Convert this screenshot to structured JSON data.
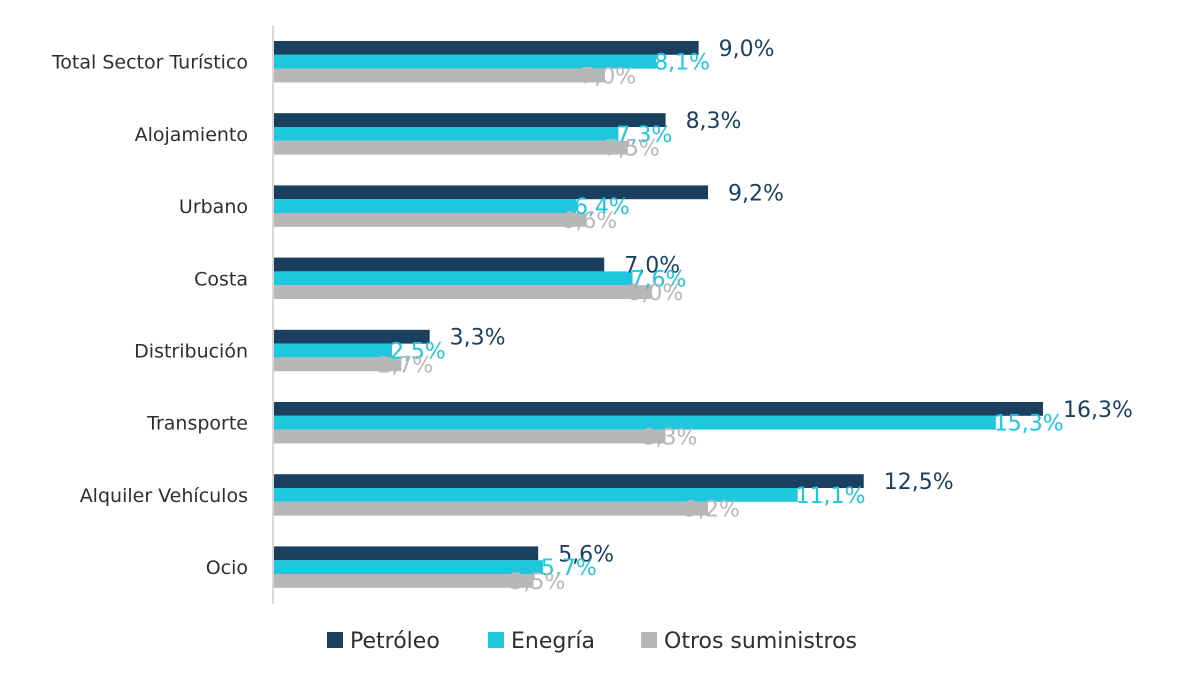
{
  "chart_data": {
    "type": "bar",
    "orientation": "horizontal",
    "categories": [
      "Total Sector Turístico",
      "Alojamiento",
      "Urbano",
      "Costa",
      "Distribución",
      "Transporte",
      "Alquiler Vehículos",
      "Ocio"
    ],
    "series": [
      {
        "name": "Petróleo",
        "color": "#1b3f5e",
        "values": [
          9.0,
          8.3,
          9.2,
          7.0,
          3.3,
          16.3,
          12.5,
          5.6
        ],
        "labels": [
          "9,0%",
          "8,3%",
          "9,2%",
          "7,0%",
          "3,3%",
          "16,3%",
          "12,5%",
          "5,6%"
        ]
      },
      {
        "name": "Enegría",
        "color": "#1ec6de",
        "values": [
          8.1,
          7.3,
          6.4,
          7.6,
          2.5,
          15.3,
          11.1,
          5.7
        ],
        "labels": [
          "8,1%",
          "7,3%",
          "6,4%",
          "7,6%",
          "2,5%",
          "15,3%",
          "11,1%",
          "5,7%"
        ]
      },
      {
        "name": "Otros suministros",
        "color": "#b7b7b7",
        "values": [
          7.0,
          7.5,
          6.6,
          8.0,
          2.7,
          8.3,
          9.2,
          5.5
        ],
        "labels": [
          "7,0%",
          "7,5%",
          "6,6%",
          "8,0%",
          "2,7%",
          "8,3%",
          "9,2%",
          "5,5%"
        ]
      }
    ],
    "xlim": [
      0,
      16.3
    ],
    "grid": false,
    "legend_position": "bottom"
  }
}
